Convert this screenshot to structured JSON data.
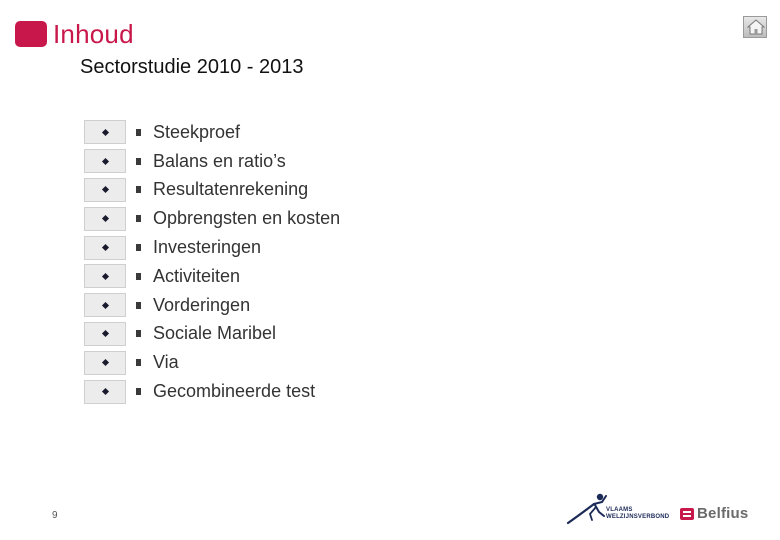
{
  "header": {
    "title": "Inhoud",
    "subtitle": "Sectorstudie 2010 - 2013",
    "accent_color": "#c8174a",
    "home_icon": "home-icon"
  },
  "toc": {
    "items": [
      {
        "label": "Steekproef"
      },
      {
        "label": "Balans en ratio’s"
      },
      {
        "label": "Resultatenrekening"
      },
      {
        "label": "Opbrengsten en kosten"
      },
      {
        "label": "Investeringen"
      },
      {
        "label": "Activiteiten"
      },
      {
        "label": "Vorderingen"
      },
      {
        "label": "Sociale Maribel"
      },
      {
        "label": "Via"
      },
      {
        "label": "Gecombineerde test"
      }
    ]
  },
  "footer": {
    "page_number": "9",
    "vwv_logo_text_line1": "VLAAMS",
    "vwv_logo_text_line2": "WELZIJNSVERBOND",
    "belfius_logo_text": "Belfius"
  }
}
